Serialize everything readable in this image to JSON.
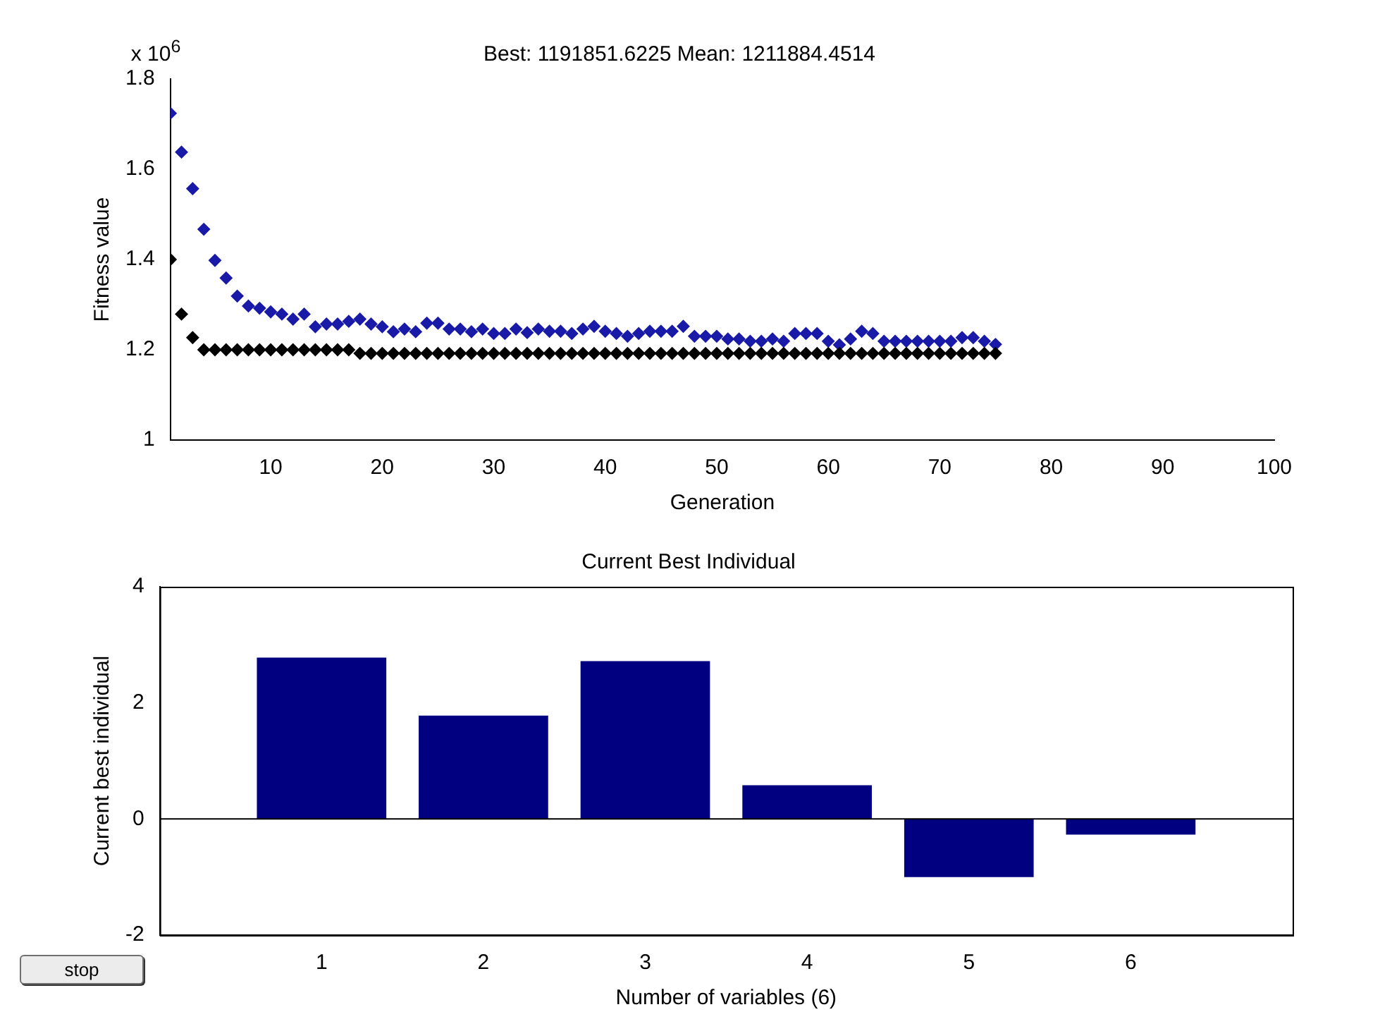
{
  "chart_data": [
    {
      "type": "scatter",
      "title": "Best: 1191851.6225 Mean: 1211884.4514",
      "xlabel": "Generation",
      "ylabel": "Fitness value",
      "annotations": [
        "x 10$^{6}$"
      ],
      "x": [
        1,
        2,
        3,
        4,
        5,
        6,
        7,
        8,
        9,
        10,
        11,
        12,
        13,
        14,
        15,
        16,
        17,
        18,
        19,
        20,
        21,
        22,
        23,
        24,
        25,
        26,
        27,
        28,
        29,
        30,
        31,
        32,
        33,
        34,
        35,
        36,
        37,
        38,
        39,
        40,
        41,
        42,
        43,
        44,
        45,
        46,
        47,
        48,
        49,
        50,
        51,
        52,
        53,
        54,
        55,
        56,
        57,
        58,
        59,
        60,
        61,
        62,
        63,
        64,
        65,
        66,
        67,
        68,
        69,
        70,
        71,
        72,
        73,
        74,
        75
      ],
      "series": [
        {
          "color": "#000000",
          "values": [
            1.4,
            1.279,
            1.227,
            1.2,
            1.2,
            1.2,
            1.2,
            1.2,
            1.2,
            1.2,
            1.2,
            1.2,
            1.2,
            1.2,
            1.2,
            1.2,
            1.2,
            1.192,
            1.192,
            1.192,
            1.192,
            1.192,
            1.192,
            1.192,
            1.192,
            1.192,
            1.192,
            1.192,
            1.192,
            1.192,
            1.192,
            1.192,
            1.192,
            1.192,
            1.192,
            1.192,
            1.192,
            1.192,
            1.192,
            1.192,
            1.192,
            1.192,
            1.192,
            1.192,
            1.192,
            1.192,
            1.192,
            1.192,
            1.192,
            1.192,
            1.192,
            1.192,
            1.192,
            1.192,
            1.192,
            1.192,
            1.192,
            1.192,
            1.192,
            1.192,
            1.192,
            1.192,
            1.192,
            1.192,
            1.192,
            1.192,
            1.192,
            1.192,
            1.192,
            1.192,
            1.192,
            1.192,
            1.192,
            1.192,
            1.192
          ]
        },
        {
          "color": "#1a1aa8",
          "values": [
            1.724,
            1.638,
            1.557,
            1.467,
            1.398,
            1.359,
            1.319,
            1.297,
            1.292,
            1.284,
            1.279,
            1.268,
            1.279,
            1.251,
            1.257,
            1.257,
            1.263,
            1.268,
            1.257,
            1.251,
            1.24,
            1.246,
            1.24,
            1.259,
            1.259,
            1.246,
            1.246,
            1.24,
            1.246,
            1.236,
            1.236,
            1.246,
            1.238,
            1.246,
            1.241,
            1.241,
            1.236,
            1.246,
            1.252,
            1.241,
            1.236,
            1.23,
            1.236,
            1.241,
            1.241,
            1.241,
            1.252,
            1.23,
            1.23,
            1.23,
            1.224,
            1.224,
            1.219,
            1.219,
            1.224,
            1.219,
            1.236,
            1.236,
            1.236,
            1.219,
            1.211,
            1.224,
            1.241,
            1.236,
            1.219,
            1.219,
            1.219,
            1.219,
            1.219,
            1.219,
            1.219,
            1.227,
            1.227,
            1.219,
            1.212
          ]
        }
      ],
      "xlim": [
        1,
        100
      ],
      "xticks": [
        10,
        20,
        30,
        40,
        50,
        60,
        70,
        80,
        90,
        100
      ],
      "ylim": [
        1,
        1.8
      ],
      "yticks": [
        1,
        1.2,
        1.4,
        1.6,
        1.8
      ],
      "marker": "diamond"
    },
    {
      "type": "bar",
      "title": "Current Best Individual",
      "xlabel": "Number of variables (6)",
      "ylabel": "Current best individual",
      "annotations": [
        "stop"
      ],
      "x": [
        1,
        2,
        3,
        4,
        5,
        6
      ],
      "values": [
        2.78,
        1.78,
        2.72,
        0.58,
        -1.0,
        -0.27
      ],
      "color": "#000080",
      "xlim": [
        0,
        7
      ],
      "xticks": [
        1,
        2,
        3,
        4,
        5,
        6
      ],
      "ylim": [
        -2,
        4
      ],
      "yticks": [
        -2,
        0,
        2,
        4
      ]
    }
  ]
}
